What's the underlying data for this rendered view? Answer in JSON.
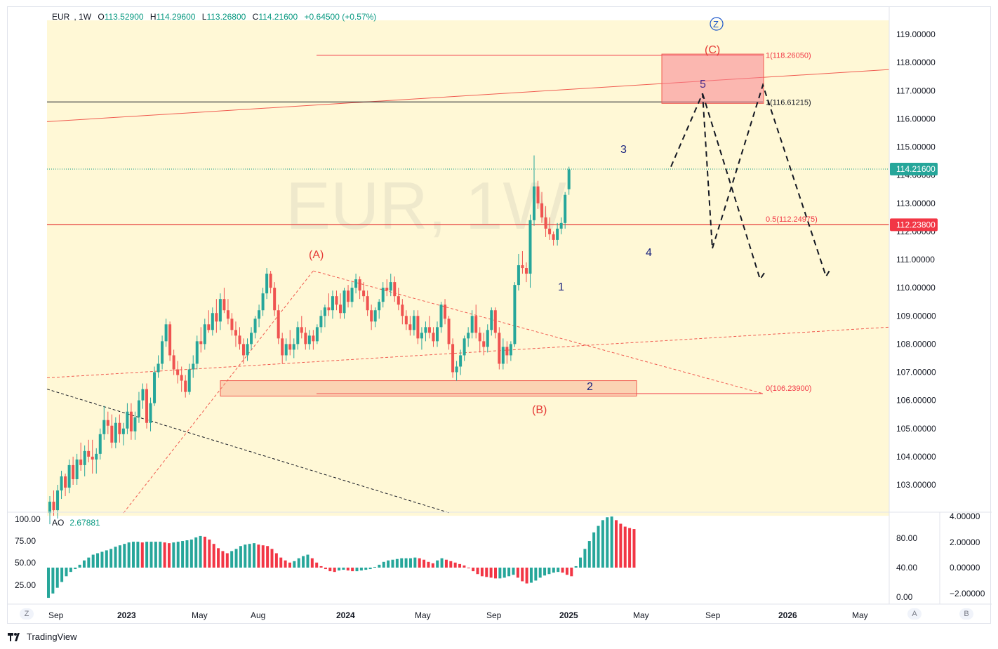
{
  "header": {
    "symbol": "EUR",
    "interval": "1W",
    "open_label": "O",
    "open": "113.52900",
    "high_label": "H",
    "high": "114.29600",
    "low_label": "L",
    "low": "113.26800",
    "close_label": "C",
    "close": "114.21600",
    "change": "+0.64500 (+0.57%)"
  },
  "watermark": "EUR, 1W",
  "indicator": {
    "name": "AO",
    "value": "2.67881"
  },
  "brand": "TradingView",
  "buttons": {
    "left": "Z",
    "auto": "A",
    "log": "B"
  },
  "colors": {
    "up": "#26a69a",
    "down": "#ef5350",
    "ao_up": "#26a69a",
    "ao_down": "#f23645",
    "zone": "#fff8d6",
    "fib": "#f23645",
    "wave_blue": "#1a237e",
    "wave_red": "#e53935"
  },
  "chart_data": {
    "type": "candlestick",
    "y_axis_ticks": [
      "119.00000",
      "118.00000",
      "117.00000",
      "116.00000",
      "115.00000",
      "114.00000",
      "113.00000",
      "112.00000",
      "111.00000",
      "110.00000",
      "109.00000",
      "108.00000",
      "107.00000",
      "106.00000",
      "105.00000",
      "104.00000",
      "103.00000"
    ],
    "ylim": [
      102.0,
      119.5
    ],
    "x_axis_ticks": [
      "Sep",
      "2023",
      "May",
      "Aug",
      "2024",
      "May",
      "Sep",
      "2025",
      "May",
      "Sep",
      "2026",
      "May"
    ],
    "price_labels": {
      "last": "114.21600",
      "level": "112.23800"
    },
    "fib_labels": {
      "top": "1(118.26050)",
      "ext": "1(116.61215)",
      "mid": "0.5(112.24975)",
      "base": "0(106.23900)"
    },
    "wave_labels": {
      "z": "Z",
      "c": "(C)",
      "a": "(A)",
      "b": "(B)",
      "w1": "1",
      "w2": "2",
      "w3": "3",
      "w4": "4",
      "w5": "5"
    },
    "ao": {
      "left_axis_ticks": [
        "100.00",
        "75.00",
        "50.00",
        "25.00"
      ],
      "right_axis_ticks_1": [
        "80.00",
        "40.00",
        "0.00"
      ],
      "right_axis_ticks_2": [
        "4.00000",
        "2.00000",
        "0.00000",
        "−2.00000"
      ],
      "last_value": 2.67881,
      "values": [
        -2.1,
        -1.8,
        -1.4,
        -1.0,
        -0.6,
        -0.3,
        -0.1,
        0.2,
        0.5,
        0.7,
        0.9,
        1.0,
        1.1,
        1.2,
        1.3,
        1.45,
        1.55,
        1.65,
        1.75,
        1.8,
        1.8,
        1.75,
        1.8,
        1.8,
        1.8,
        1.8,
        1.75,
        1.7,
        1.75,
        1.8,
        1.85,
        1.9,
        1.95,
        2.1,
        2.2,
        2.15,
        1.95,
        1.65,
        1.35,
        1.15,
        1.0,
        1.15,
        1.3,
        1.5,
        1.6,
        1.65,
        1.7,
        1.6,
        1.55,
        1.5,
        1.3,
        1.0,
        0.7,
        0.5,
        0.35,
        0.45,
        0.65,
        0.8,
        0.9,
        0.65,
        0.35,
        0.1,
        -0.1,
        -0.25,
        -0.3,
        -0.2,
        -0.15,
        -0.2,
        -0.25,
        -0.25,
        -0.2,
        -0.15,
        -0.1,
        0.05,
        0.2,
        0.4,
        0.5,
        0.55,
        0.6,
        0.65,
        0.65,
        0.65,
        0.7,
        0.65,
        0.55,
        0.4,
        0.3,
        0.5,
        0.65,
        0.55,
        0.45,
        0.35,
        0.25,
        0.15,
        -0.05,
        -0.25,
        -0.45,
        -0.6,
        -0.65,
        -0.7,
        -0.75,
        -0.75,
        -0.7,
        -0.6,
        -0.5,
        -0.7,
        -0.95,
        -1.1,
        -1.05,
        -0.9,
        -0.7,
        -0.55,
        -0.45,
        -0.35,
        -0.3,
        -0.35,
        -0.5,
        -0.6,
        0.1,
        0.7,
        1.3,
        1.85,
        2.45,
        2.9,
        3.3,
        3.5,
        3.55,
        3.3,
        3.05,
        2.85,
        2.75,
        2.68
      ]
    },
    "candles": [
      [
        102.0,
        102.6,
        101.6,
        102.4
      ],
      [
        102.4,
        102.8,
        101.9,
        102.1
      ],
      [
        102.1,
        103.0,
        101.8,
        102.8
      ],
      [
        102.8,
        103.5,
        102.5,
        103.3
      ],
      [
        103.3,
        103.4,
        102.6,
        102.9
      ],
      [
        102.9,
        103.9,
        102.7,
        103.7
      ],
      [
        103.7,
        104.0,
        103.0,
        103.2
      ],
      [
        103.2,
        104.1,
        103.0,
        103.9
      ],
      [
        103.9,
        104.5,
        103.5,
        103.7
      ],
      [
        103.7,
        104.4,
        103.3,
        104.2
      ],
      [
        104.2,
        104.6,
        103.8,
        104.0
      ],
      [
        104.0,
        104.6,
        103.4,
        103.9
      ],
      [
        103.9,
        104.3,
        103.4,
        104.1
      ],
      [
        104.1,
        105.0,
        103.9,
        104.8
      ],
      [
        104.8,
        105.8,
        104.6,
        105.3
      ],
      [
        105.3,
        105.6,
        104.8,
        105.1
      ],
      [
        105.1,
        105.5,
        104.3,
        104.5
      ],
      [
        104.5,
        105.4,
        104.3,
        105.2
      ],
      [
        105.2,
        105.5,
        104.5,
        104.8
      ],
      [
        104.8,
        105.2,
        104.4,
        105.0
      ],
      [
        105.0,
        105.9,
        104.8,
        105.6
      ],
      [
        105.6,
        105.9,
        104.6,
        104.9
      ],
      [
        104.9,
        105.6,
        104.6,
        105.4
      ],
      [
        105.4,
        106.3,
        105.2,
        106.0
      ],
      [
        106.0,
        106.6,
        105.7,
        106.4
      ],
      [
        106.4,
        106.6,
        105.0,
        105.2
      ],
      [
        105.2,
        106.1,
        104.9,
        105.9
      ],
      [
        105.9,
        107.2,
        105.8,
        107.0
      ],
      [
        107.0,
        107.6,
        106.8,
        107.3
      ],
      [
        107.3,
        108.3,
        107.1,
        108.1
      ],
      [
        108.1,
        108.9,
        107.9,
        108.7
      ],
      [
        108.7,
        108.8,
        107.4,
        107.6
      ],
      [
        107.6,
        107.8,
        106.9,
        107.1
      ],
      [
        107.1,
        107.4,
        106.6,
        106.9
      ],
      [
        106.9,
        107.2,
        106.3,
        106.7
      ],
      [
        106.7,
        106.9,
        106.1,
        106.3
      ],
      [
        106.3,
        107.3,
        106.2,
        107.1
      ],
      [
        107.1,
        107.6,
        106.8,
        107.3
      ],
      [
        107.3,
        108.3,
        107.1,
        108.1
      ],
      [
        108.1,
        108.6,
        107.7,
        108.0
      ],
      [
        108.0,
        108.9,
        107.8,
        108.7
      ],
      [
        108.7,
        109.2,
        108.4,
        108.5
      ],
      [
        108.5,
        109.3,
        108.3,
        109.1
      ],
      [
        109.1,
        109.6,
        108.4,
        108.8
      ],
      [
        108.8,
        109.8,
        108.5,
        109.6
      ],
      [
        109.6,
        110.0,
        109.1,
        109.2
      ],
      [
        109.2,
        109.6,
        108.7,
        108.9
      ],
      [
        108.9,
        109.1,
        108.3,
        108.5
      ],
      [
        108.5,
        108.8,
        107.9,
        108.3
      ],
      [
        108.3,
        108.6,
        107.8,
        108.0
      ],
      [
        108.0,
        108.2,
        107.3,
        107.6
      ],
      [
        107.6,
        108.2,
        107.4,
        108.0
      ],
      [
        108.0,
        108.6,
        107.8,
        108.4
      ],
      [
        108.4,
        109.0,
        108.2,
        108.9
      ],
      [
        108.9,
        109.4,
        108.6,
        109.2
      ],
      [
        109.2,
        110.0,
        109.0,
        109.8
      ],
      [
        109.8,
        110.7,
        109.6,
        110.5
      ],
      [
        110.5,
        110.6,
        109.8,
        110.0
      ],
      [
        110.0,
        110.2,
        109.0,
        109.2
      ],
      [
        109.2,
        109.4,
        108.0,
        108.2
      ],
      [
        108.2,
        108.4,
        107.3,
        107.6
      ],
      [
        107.6,
        108.2,
        107.4,
        108.0
      ],
      [
        108.0,
        108.5,
        107.6,
        107.8
      ],
      [
        107.8,
        108.2,
        107.5,
        108.0
      ],
      [
        108.0,
        108.8,
        107.8,
        108.6
      ],
      [
        108.6,
        109.0,
        108.2,
        108.4
      ],
      [
        108.4,
        108.6,
        107.8,
        108.0
      ],
      [
        108.0,
        108.5,
        107.8,
        108.3
      ],
      [
        108.3,
        108.5,
        107.8,
        108.1
      ],
      [
        108.1,
        108.7,
        108.0,
        108.6
      ],
      [
        108.6,
        109.2,
        108.4,
        109.0
      ],
      [
        109.0,
        109.4,
        108.6,
        109.3
      ],
      [
        109.3,
        109.8,
        109.0,
        109.2
      ],
      [
        109.2,
        109.9,
        108.9,
        109.7
      ],
      [
        109.7,
        109.9,
        109.2,
        109.4
      ],
      [
        109.4,
        109.8,
        108.9,
        109.1
      ],
      [
        109.1,
        110.0,
        108.9,
        109.9
      ],
      [
        109.9,
        110.1,
        109.3,
        109.5
      ],
      [
        109.5,
        110.2,
        109.3,
        110.0
      ],
      [
        110.0,
        110.5,
        109.8,
        110.3
      ],
      [
        110.3,
        110.4,
        109.6,
        109.9
      ],
      [
        109.9,
        110.2,
        109.5,
        109.7
      ],
      [
        109.7,
        109.9,
        109.0,
        109.2
      ],
      [
        109.2,
        109.4,
        108.5,
        108.8
      ],
      [
        108.8,
        109.3,
        108.6,
        109.2
      ],
      [
        109.2,
        109.6,
        108.9,
        109.5
      ],
      [
        109.5,
        110.2,
        109.3,
        110.0
      ],
      [
        110.0,
        110.3,
        109.7,
        109.9
      ],
      [
        109.9,
        110.5,
        109.7,
        110.2
      ],
      [
        110.2,
        110.4,
        109.5,
        109.7
      ],
      [
        109.7,
        110.0,
        109.2,
        109.4
      ],
      [
        109.4,
        109.6,
        108.7,
        109.0
      ],
      [
        109.0,
        109.2,
        108.5,
        108.7
      ],
      [
        108.7,
        109.0,
        108.3,
        108.5
      ],
      [
        108.5,
        109.2,
        108.3,
        109.0
      ],
      [
        109.0,
        109.2,
        108.0,
        108.2
      ],
      [
        108.2,
        108.6,
        107.8,
        108.4
      ],
      [
        108.4,
        108.8,
        108.1,
        108.6
      ],
      [
        108.6,
        109.0,
        108.2,
        108.4
      ],
      [
        108.4,
        108.6,
        107.9,
        108.1
      ],
      [
        108.1,
        108.8,
        107.9,
        108.6
      ],
      [
        108.6,
        109.5,
        108.4,
        109.4
      ],
      [
        109.4,
        109.6,
        108.7,
        108.9
      ],
      [
        108.9,
        109.0,
        107.8,
        108.0
      ],
      [
        108.0,
        108.2,
        106.8,
        107.0
      ],
      [
        107.0,
        107.4,
        106.7,
        107.2
      ],
      [
        107.2,
        107.8,
        106.9,
        107.6
      ],
      [
        107.6,
        108.3,
        107.4,
        108.2
      ],
      [
        108.2,
        108.6,
        107.9,
        108.4
      ],
      [
        108.4,
        109.2,
        108.2,
        109.0
      ],
      [
        109.0,
        109.4,
        108.2,
        108.4
      ],
      [
        108.4,
        108.6,
        107.7,
        108.1
      ],
      [
        108.1,
        108.4,
        107.6,
        107.9
      ],
      [
        107.9,
        108.7,
        107.7,
        108.5
      ],
      [
        108.5,
        109.3,
        108.3,
        109.2
      ],
      [
        109.2,
        109.3,
        108.2,
        108.4
      ],
      [
        108.4,
        108.6,
        107.1,
        107.3
      ],
      [
        107.3,
        108.2,
        107.1,
        107.9
      ],
      [
        107.9,
        108.1,
        107.3,
        107.6
      ],
      [
        107.6,
        108.1,
        107.4,
        108.0
      ],
      [
        108.0,
        110.2,
        107.9,
        110.1
      ],
      [
        110.1,
        111.2,
        109.9,
        110.8
      ],
      [
        110.8,
        111.3,
        110.5,
        110.7
      ],
      [
        110.7,
        110.9,
        110.2,
        110.5
      ],
      [
        110.5,
        112.6,
        110.0,
        112.4
      ],
      [
        112.4,
        114.7,
        112.2,
        113.6
      ],
      [
        113.6,
        113.8,
        112.8,
        113.0
      ],
      [
        113.0,
        113.4,
        112.3,
        112.5
      ],
      [
        112.5,
        112.9,
        111.8,
        112.1
      ],
      [
        112.1,
        112.5,
        111.7,
        111.9
      ],
      [
        111.9,
        112.0,
        111.5,
        111.7
      ],
      [
        111.7,
        112.3,
        111.5,
        112.1
      ],
      [
        112.1,
        112.5,
        111.9,
        112.3
      ],
      [
        112.3,
        113.4,
        112.1,
        113.3
      ],
      [
        113.5,
        114.3,
        113.3,
        114.2
      ]
    ]
  }
}
